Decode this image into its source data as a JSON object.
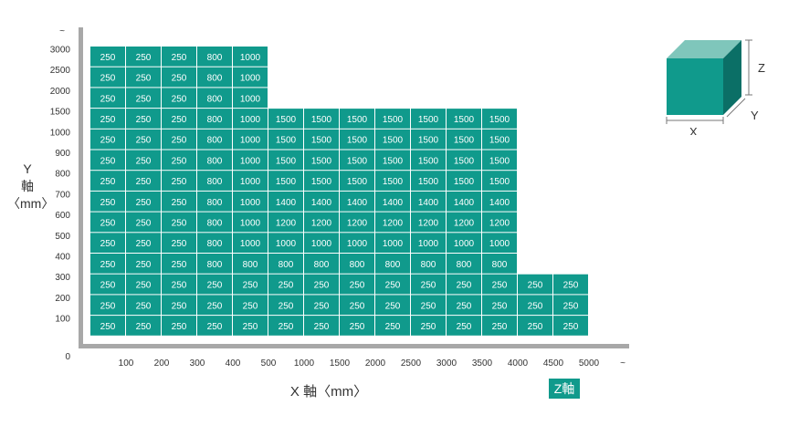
{
  "chart_data": {
    "type": "table",
    "ylabel_parts": [
      "Y",
      "軸",
      "〈mm〉"
    ],
    "xlabel": "X 軸〈mm〉",
    "zlabel": "Z軸",
    "x_ticks": [
      "100",
      "200",
      "300",
      "400",
      "500",
      "1000",
      "1500",
      "2000",
      "2500",
      "3000",
      "3500",
      "4000",
      "4500",
      "5000"
    ],
    "x_tick_end": "~",
    "y_ticks": [
      "100",
      "200",
      "300",
      "400",
      "500",
      "600",
      "700",
      "800",
      "900",
      "1000",
      "1500",
      "2000",
      "2500",
      "3000"
    ],
    "y_tick_top": "~",
    "origin": "0",
    "rows": [
      [
        "250",
        "250",
        "250",
        "800",
        "1000"
      ],
      [
        "250",
        "250",
        "250",
        "800",
        "1000"
      ],
      [
        "250",
        "250",
        "250",
        "800",
        "1000"
      ],
      [
        "250",
        "250",
        "250",
        "800",
        "1000",
        "1500",
        "1500",
        "1500",
        "1500",
        "1500",
        "1500",
        "1500"
      ],
      [
        "250",
        "250",
        "250",
        "800",
        "1000",
        "1500",
        "1500",
        "1500",
        "1500",
        "1500",
        "1500",
        "1500"
      ],
      [
        "250",
        "250",
        "250",
        "800",
        "1000",
        "1500",
        "1500",
        "1500",
        "1500",
        "1500",
        "1500",
        "1500"
      ],
      [
        "250",
        "250",
        "250",
        "800",
        "1000",
        "1500",
        "1500",
        "1500",
        "1500",
        "1500",
        "1500",
        "1500"
      ],
      [
        "250",
        "250",
        "250",
        "800",
        "1000",
        "1400",
        "1400",
        "1400",
        "1400",
        "1400",
        "1400",
        "1400"
      ],
      [
        "250",
        "250",
        "250",
        "800",
        "1000",
        "1200",
        "1200",
        "1200",
        "1200",
        "1200",
        "1200",
        "1200"
      ],
      [
        "250",
        "250",
        "250",
        "800",
        "1000",
        "1000",
        "1000",
        "1000",
        "1000",
        "1000",
        "1000",
        "1000"
      ],
      [
        "250",
        "250",
        "250",
        "800",
        "800",
        "800",
        "800",
        "800",
        "800",
        "800",
        "800",
        "800"
      ],
      [
        "250",
        "250",
        "250",
        "250",
        "250",
        "250",
        "250",
        "250",
        "250",
        "250",
        "250",
        "250",
        "250",
        "250"
      ],
      [
        "250",
        "250",
        "250",
        "250",
        "250",
        "250",
        "250",
        "250",
        "250",
        "250",
        "250",
        "250",
        "250",
        "250"
      ],
      [
        "250",
        "250",
        "250",
        "250",
        "250",
        "250",
        "250",
        "250",
        "250",
        "250",
        "250",
        "250",
        "250",
        "250"
      ]
    ]
  },
  "cube": {
    "x_label": "X",
    "y_label": "Y",
    "z_label": "Z"
  },
  "colors": {
    "cell": "#109a8c",
    "axis": "#a8a8a8",
    "cube_front": "#109a8c",
    "cube_top": "#7fc6bb",
    "cube_side": "#0b6f66"
  }
}
